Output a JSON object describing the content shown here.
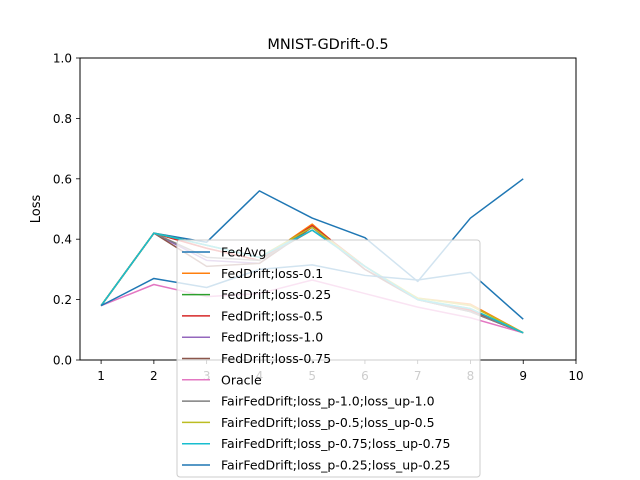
{
  "chart_data": {
    "type": "line",
    "title": "MNIST-GDrift-0.5",
    "xlabel": "",
    "ylabel": "Loss",
    "xlim": [
      0.6,
      10.0
    ],
    "ylim": [
      0.0,
      1.0
    ],
    "xticks": [
      1,
      2,
      3,
      4,
      5,
      6,
      7,
      8,
      9,
      10
    ],
    "yticks": [
      0.0,
      0.2,
      0.4,
      0.6,
      0.8,
      1.0
    ],
    "xtick_labels": [
      "1",
      "2",
      "3",
      "4",
      "5",
      "6",
      "7",
      "8",
      "9",
      "10"
    ],
    "ytick_labels": [
      "0.0",
      "0.2",
      "0.4",
      "0.6",
      "0.8",
      "1.0"
    ],
    "grid": false,
    "legend_position": "lower-center",
    "x": [
      1,
      2,
      3,
      4,
      5,
      6,
      7,
      8,
      9
    ],
    "series": [
      {
        "name": "FedAvg",
        "color": "#1f77b4",
        "values": [
          0.18,
          0.42,
          0.39,
          0.56,
          0.47,
          0.405,
          0.26,
          0.47,
          0.6
        ]
      },
      {
        "name": "FedDrift;loss-0.1",
        "color": "#ff7f0e",
        "values": [
          0.18,
          0.42,
          0.37,
          0.33,
          0.45,
          0.3,
          0.205,
          0.185,
          0.09
        ]
      },
      {
        "name": "FedDrift;loss-0.25",
        "color": "#2ca02c",
        "values": [
          0.18,
          0.42,
          0.38,
          0.34,
          0.44,
          0.31,
          0.2,
          0.17,
          0.09
        ]
      },
      {
        "name": "FedDrift;loss-0.5",
        "color": "#d62728",
        "values": [
          0.18,
          0.42,
          0.37,
          0.33,
          0.445,
          0.31,
          0.2,
          0.165,
          0.09
        ]
      },
      {
        "name": "FedDrift;loss-1.0",
        "color": "#9467bd",
        "values": [
          0.18,
          0.42,
          0.33,
          0.32,
          0.44,
          0.3,
          0.2,
          0.16,
          0.09
        ]
      },
      {
        "name": "FedDrift;loss-0.75",
        "color": "#8c564b",
        "values": [
          0.18,
          0.42,
          0.31,
          0.32,
          0.44,
          0.3,
          0.2,
          0.16,
          0.09
        ]
      },
      {
        "name": "Oracle",
        "color": "#e377c2",
        "values": [
          0.18,
          0.25,
          0.21,
          0.22,
          0.265,
          0.22,
          0.175,
          0.14,
          0.09
        ]
      },
      {
        "name": "FairFedDrift;loss_p-1.0;loss_up-1.0",
        "color": "#7f7f7f",
        "values": [
          0.18,
          0.42,
          0.34,
          0.33,
          0.43,
          0.31,
          0.2,
          0.16,
          0.09
        ]
      },
      {
        "name": "FairFedDrift;loss_p-0.5;loss_up-0.5",
        "color": "#bcbd22",
        "values": [
          0.18,
          0.42,
          0.38,
          0.34,
          0.44,
          0.31,
          0.205,
          0.18,
          0.09
        ]
      },
      {
        "name": "FairFedDrift;loss_p-0.75;loss_up-0.75",
        "color": "#17becf",
        "values": [
          0.18,
          0.42,
          0.38,
          0.34,
          0.43,
          0.31,
          0.2,
          0.17,
          0.09
        ]
      },
      {
        "name": "FairFedDrift;loss_p-0.25;loss_up-0.25",
        "color": "#1f77b4",
        "values": [
          0.18,
          0.27,
          0.24,
          0.3,
          0.315,
          0.28,
          0.265,
          0.29,
          0.135
        ]
      }
    ]
  }
}
